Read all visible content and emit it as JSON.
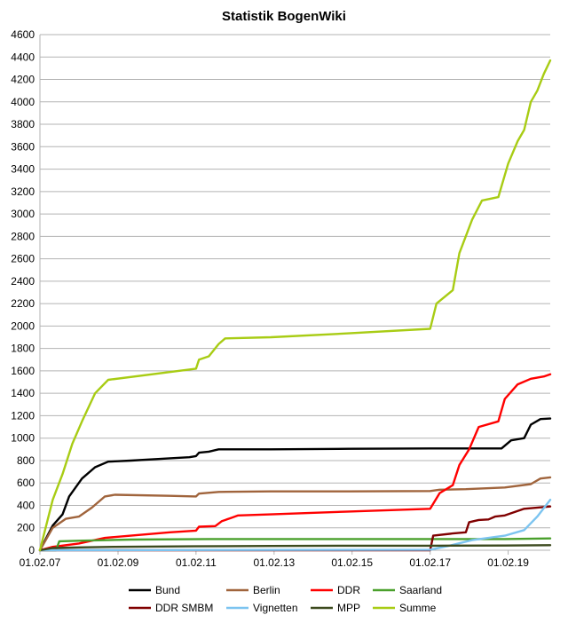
{
  "chart_data": {
    "type": "line",
    "title": "Statistik BogenWiki",
    "xlabel": "",
    "ylabel": "",
    "ylim": [
      0,
      4600
    ],
    "yticks": [
      0,
      200,
      400,
      600,
      800,
      1000,
      1200,
      1400,
      1600,
      1800,
      2000,
      2200,
      2400,
      2600,
      2800,
      3000,
      3200,
      3400,
      3600,
      3800,
      4000,
      4200,
      4400,
      4600
    ],
    "xlim": [
      "2007-02-01",
      "2020-03-01"
    ],
    "xticks": [
      {
        "date": "2007-02-01",
        "label": "01.02.07"
      },
      {
        "date": "2009-02-01",
        "label": "01.02.09"
      },
      {
        "date": "2011-02-01",
        "label": "01.02.11"
      },
      {
        "date": "2013-02-01",
        "label": "01.02.13"
      },
      {
        "date": "2015-02-01",
        "label": "01.02.15"
      },
      {
        "date": "2017-02-01",
        "label": "01.02.17"
      },
      {
        "date": "2019-02-01",
        "label": "01.02.19"
      }
    ],
    "grid": "horizontal",
    "legend_position": "bottom",
    "series": [
      {
        "name": "Bund",
        "color": "#000000",
        "points": [
          [
            "2007-02-01",
            0
          ],
          [
            "2007-06-01",
            220
          ],
          [
            "2007-09-01",
            320
          ],
          [
            "2007-11-01",
            480
          ],
          [
            "2008-03-01",
            640
          ],
          [
            "2008-07-01",
            740
          ],
          [
            "2008-11-01",
            790
          ],
          [
            "2009-06-01",
            800
          ],
          [
            "2010-06-01",
            820
          ],
          [
            "2010-12-01",
            830
          ],
          [
            "2011-02-01",
            840
          ],
          [
            "2011-03-01",
            870
          ],
          [
            "2011-06-01",
            880
          ],
          [
            "2011-09-01",
            900
          ],
          [
            "2013-01-01",
            900
          ],
          [
            "2015-01-01",
            905
          ],
          [
            "2017-02-01",
            908
          ],
          [
            "2018-12-01",
            908
          ],
          [
            "2019-03-01",
            980
          ],
          [
            "2019-07-01",
            1000
          ],
          [
            "2019-09-01",
            1120
          ],
          [
            "2019-12-01",
            1170
          ],
          [
            "2020-03-01",
            1175
          ]
        ]
      },
      {
        "name": "Berlin",
        "color": "#a0643c",
        "points": [
          [
            "2007-02-01",
            0
          ],
          [
            "2007-06-01",
            200
          ],
          [
            "2007-10-01",
            280
          ],
          [
            "2008-02-01",
            300
          ],
          [
            "2008-06-01",
            380
          ],
          [
            "2008-10-01",
            480
          ],
          [
            "2009-01-01",
            495
          ],
          [
            "2010-06-01",
            485
          ],
          [
            "2011-02-01",
            480
          ],
          [
            "2011-03-01",
            505
          ],
          [
            "2011-09-01",
            520
          ],
          [
            "2013-01-01",
            525
          ],
          [
            "2015-01-01",
            525
          ],
          [
            "2017-02-01",
            528
          ],
          [
            "2017-05-01",
            540
          ],
          [
            "2018-01-01",
            545
          ],
          [
            "2019-01-01",
            560
          ],
          [
            "2019-09-01",
            590
          ],
          [
            "2019-12-01",
            640
          ],
          [
            "2020-03-01",
            650
          ]
        ]
      },
      {
        "name": "DDR",
        "color": "#ff0000",
        "points": [
          [
            "2007-02-01",
            0
          ],
          [
            "2007-06-01",
            30
          ],
          [
            "2008-02-01",
            60
          ],
          [
            "2008-10-01",
            110
          ],
          [
            "2009-06-01",
            130
          ],
          [
            "2010-06-01",
            160
          ],
          [
            "2011-02-01",
            175
          ],
          [
            "2011-03-01",
            210
          ],
          [
            "2011-08-01",
            215
          ],
          [
            "2011-10-01",
            260
          ],
          [
            "2012-01-01",
            290
          ],
          [
            "2012-03-01",
            310
          ],
          [
            "2013-01-01",
            320
          ],
          [
            "2015-01-01",
            345
          ],
          [
            "2017-02-01",
            370
          ],
          [
            "2017-05-01",
            510
          ],
          [
            "2017-09-01",
            580
          ],
          [
            "2017-11-01",
            760
          ],
          [
            "2018-02-01",
            900
          ],
          [
            "2018-05-01",
            1100
          ],
          [
            "2018-11-01",
            1150
          ],
          [
            "2019-01-01",
            1350
          ],
          [
            "2019-05-01",
            1480
          ],
          [
            "2019-09-01",
            1530
          ],
          [
            "2020-01-01",
            1550
          ],
          [
            "2020-03-01",
            1570
          ]
        ]
      },
      {
        "name": "Saarland",
        "color": "#4aa02c",
        "points": [
          [
            "2007-02-01",
            0
          ],
          [
            "2007-07-01",
            0
          ],
          [
            "2007-08-01",
            80
          ],
          [
            "2008-02-01",
            85
          ],
          [
            "2009-06-01",
            95
          ],
          [
            "2011-06-01",
            100
          ],
          [
            "2013-01-01",
            100
          ],
          [
            "2015-01-01",
            100
          ],
          [
            "2017-02-01",
            100
          ],
          [
            "2019-01-01",
            100
          ],
          [
            "2020-03-01",
            105
          ]
        ]
      },
      {
        "name": "DDR SMBM",
        "color": "#800000",
        "points": [
          [
            "2007-02-01",
            0
          ],
          [
            "2017-02-01",
            0
          ],
          [
            "2017-03-01",
            130
          ],
          [
            "2017-09-01",
            150
          ],
          [
            "2018-01-01",
            160
          ],
          [
            "2018-02-01",
            250
          ],
          [
            "2018-05-01",
            270
          ],
          [
            "2018-08-01",
            275
          ],
          [
            "2018-10-01",
            300
          ],
          [
            "2019-01-01",
            310
          ],
          [
            "2019-07-01",
            370
          ],
          [
            "2020-03-01",
            390
          ]
        ]
      },
      {
        "name": "Vignetten",
        "color": "#7cc4f0",
        "points": [
          [
            "2007-02-01",
            0
          ],
          [
            "2017-02-01",
            5
          ],
          [
            "2017-08-01",
            40
          ],
          [
            "2018-03-01",
            90
          ],
          [
            "2019-01-01",
            130
          ],
          [
            "2019-07-01",
            180
          ],
          [
            "2019-11-01",
            300
          ],
          [
            "2020-03-01",
            450
          ]
        ]
      },
      {
        "name": "MPP",
        "color": "#3c4a1e",
        "points": [
          [
            "2007-02-01",
            0
          ],
          [
            "2007-06-01",
            20
          ],
          [
            "2008-02-01",
            25
          ],
          [
            "2009-01-01",
            30
          ],
          [
            "2011-01-01",
            35
          ],
          [
            "2013-01-01",
            38
          ],
          [
            "2015-01-01",
            40
          ],
          [
            "2017-02-01",
            40
          ],
          [
            "2019-01-01",
            42
          ],
          [
            "2020-03-01",
            45
          ]
        ]
      },
      {
        "name": "Summe",
        "color": "#a8cc14",
        "points": [
          [
            "2007-02-01",
            0
          ],
          [
            "2007-06-01",
            450
          ],
          [
            "2007-09-01",
            680
          ],
          [
            "2007-12-01",
            950
          ],
          [
            "2008-03-01",
            1150
          ],
          [
            "2008-07-01",
            1400
          ],
          [
            "2008-11-01",
            1520
          ],
          [
            "2010-06-01",
            1590
          ],
          [
            "2011-02-01",
            1620
          ],
          [
            "2011-03-01",
            1700
          ],
          [
            "2011-06-01",
            1730
          ],
          [
            "2011-09-01",
            1840
          ],
          [
            "2011-11-01",
            1890
          ],
          [
            "2013-01-01",
            1900
          ],
          [
            "2015-01-01",
            1935
          ],
          [
            "2017-02-01",
            1975
          ],
          [
            "2017-04-01",
            2200
          ],
          [
            "2017-09-01",
            2320
          ],
          [
            "2017-11-01",
            2650
          ],
          [
            "2018-03-01",
            2950
          ],
          [
            "2018-06-01",
            3120
          ],
          [
            "2018-11-01",
            3150
          ],
          [
            "2019-02-01",
            3450
          ],
          [
            "2019-05-01",
            3650
          ],
          [
            "2019-07-01",
            3750
          ],
          [
            "2019-09-01",
            4000
          ],
          [
            "2019-11-01",
            4100
          ],
          [
            "2020-01-01",
            4250
          ],
          [
            "2020-03-01",
            4370
          ]
        ]
      }
    ]
  }
}
